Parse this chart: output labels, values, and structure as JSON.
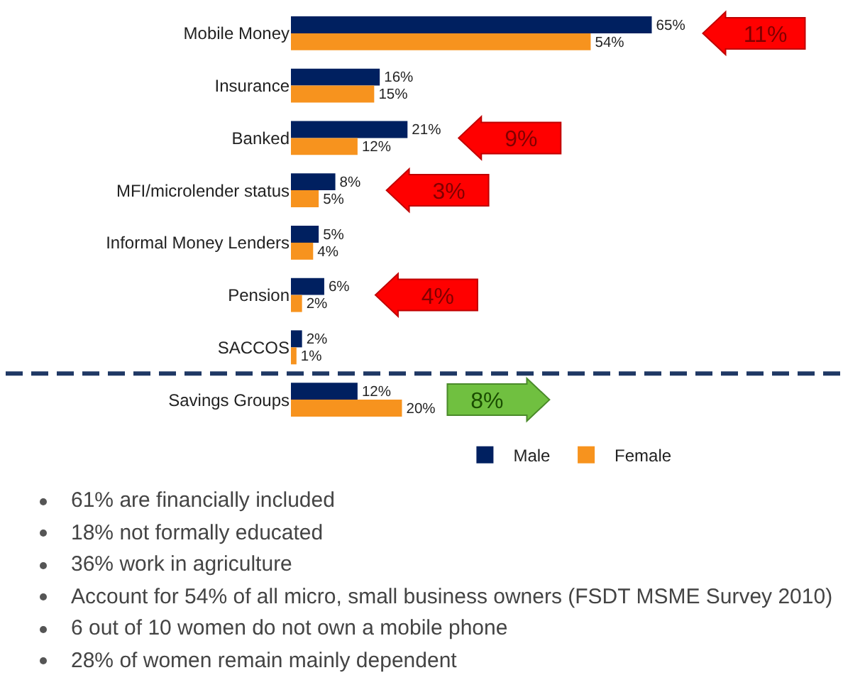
{
  "chart_data": {
    "type": "bar",
    "orientation": "horizontal",
    "categories": [
      "Mobile Money",
      "Insurance",
      "Banked",
      "MFI/microlender status",
      "Informal Money Lenders",
      "Pension",
      "SACCOS",
      "Savings Groups"
    ],
    "series": [
      {
        "name": "Male",
        "color": "#002060",
        "values": [
          65,
          16,
          21,
          8,
          5,
          6,
          2,
          12
        ],
        "value_labels": [
          "65%",
          "16%",
          "21%",
          "8%",
          "5%",
          "6%",
          "2%",
          "12%"
        ]
      },
      {
        "name": "Female",
        "color": "#f7931e",
        "values": [
          54,
          15,
          12,
          5,
          4,
          2,
          1,
          20
        ],
        "value_labels": [
          "54%",
          "15%",
          "12%",
          "5%",
          "4%",
          "2%",
          "1%",
          "20%"
        ]
      }
    ],
    "legend": "bottom",
    "grid": false,
    "annotations": [
      "11%",
      "9%",
      "3%",
      "4%",
      "8%",
      "61% are financially included",
      "18% not formally educated",
      "36% work in agriculture",
      "Account for 54% of all micro, small business owners (FSDT MSME Survey 2010)",
      "6 out of 10 women do not own a mobile phone",
      "28% of women remain mainly dependent"
    ]
  }
}
